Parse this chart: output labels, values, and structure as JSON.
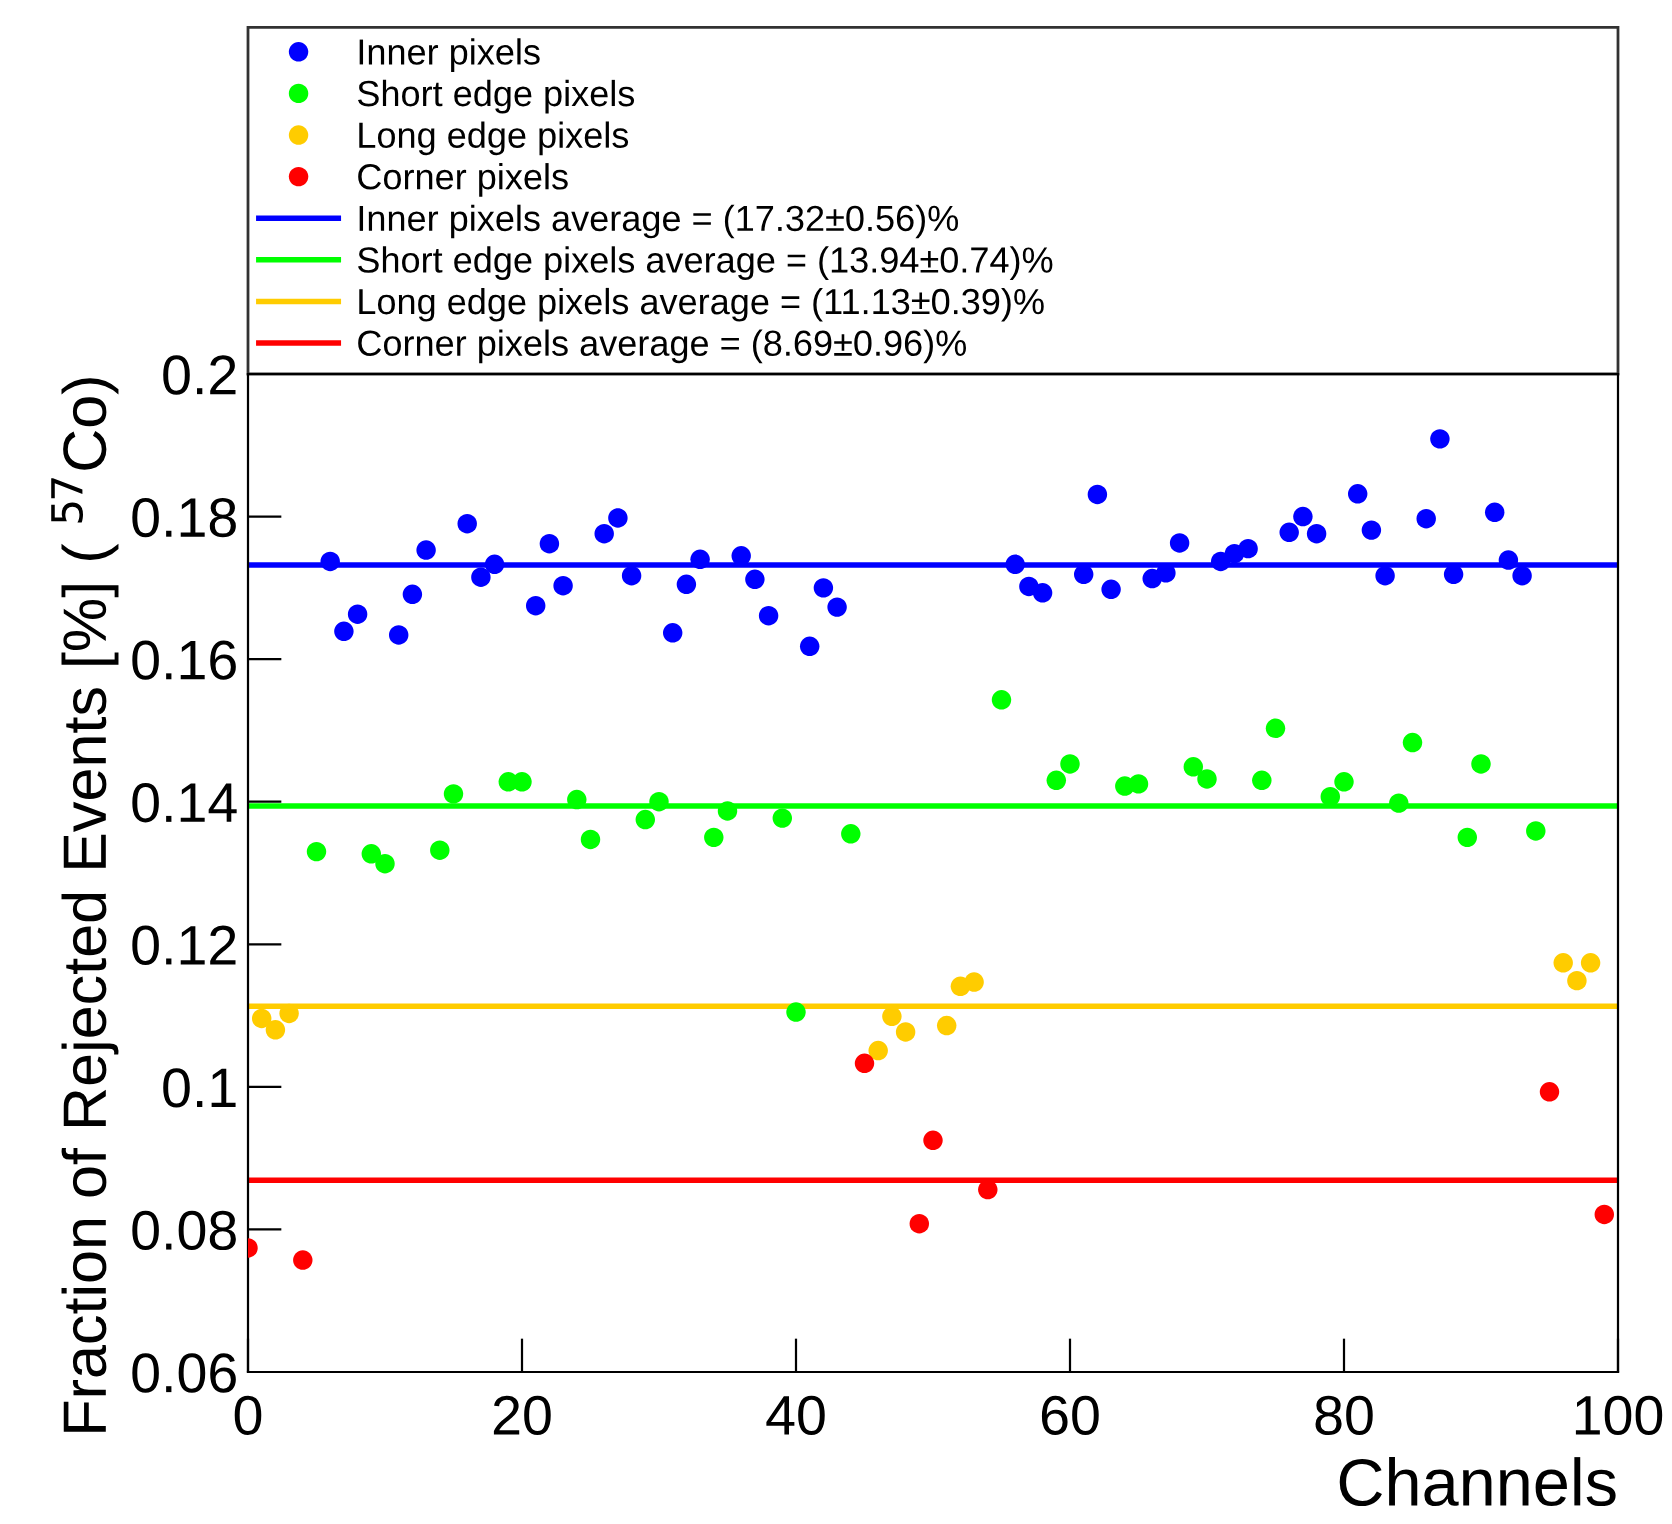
{
  "chart_data": {
    "type": "scatter",
    "xlabel": "Channels",
    "ylabel": "Fraction of Rejected Events [%] ( $^{57}$Co)",
    "xlim": [
      0,
      100
    ],
    "xticks": [
      0,
      20,
      40,
      60,
      80,
      100
    ],
    "ylim": [
      0.06,
      0.2
    ],
    "yticks": [
      0.06,
      0.08,
      0.1,
      0.12,
      0.14,
      0.16,
      0.18,
      0.2
    ],
    "grid": false,
    "legend": "top",
    "marker": "circle",
    "series": [
      {
        "name": "Inner pixels",
        "color": "#0000ff",
        "x": [
          6,
          7,
          8,
          11,
          12,
          13,
          16,
          17,
          18,
          21,
          22,
          23,
          26,
          27,
          28,
          31,
          32,
          33,
          36,
          37,
          38,
          41,
          42,
          43,
          56,
          57,
          58,
          61,
          62,
          63,
          66,
          67,
          68,
          71,
          72,
          73,
          76,
          77,
          78,
          81,
          82,
          83,
          86,
          87,
          88,
          91,
          92,
          93
        ],
        "values": [
          0.1737,
          0.1639,
          0.1663,
          0.1634,
          0.1691,
          0.1753,
          0.179,
          0.1715,
          0.1733,
          0.1675,
          0.1762,
          0.1703,
          0.1776,
          0.1798,
          0.1717,
          0.1637,
          0.1705,
          0.174,
          0.1745,
          0.1712,
          0.1661,
          0.1618,
          0.17,
          0.1673,
          0.1733,
          0.1702,
          0.1693,
          0.1719,
          0.1831,
          0.1698,
          0.1713,
          0.1721,
          0.1763,
          0.1737,
          0.1748,
          0.1755,
          0.1778,
          0.18,
          0.1776,
          0.1832,
          0.1781,
          0.1717,
          0.1797,
          0.1909,
          0.1719,
          0.1806,
          0.1739,
          0.1717
        ]
      },
      {
        "name": "Short edge pixels",
        "color": "#00ff00",
        "x": [
          5,
          9,
          10,
          14,
          15,
          19,
          20,
          24,
          25,
          29,
          30,
          34,
          35,
          39,
          40,
          44,
          55,
          59,
          60,
          64,
          65,
          69,
          70,
          74,
          75,
          79,
          80,
          84,
          85,
          89,
          90,
          94
        ],
        "values": [
          0.133,
          0.1327,
          0.1313,
          0.1332,
          0.1411,
          0.1428,
          0.1428,
          0.1403,
          0.1347,
          0.1375,
          0.14,
          0.135,
          0.1387,
          0.1377,
          0.1105,
          0.1355,
          0.1543,
          0.143,
          0.1453,
          0.1422,
          0.1425,
          0.1449,
          0.1432,
          0.143,
          0.1503,
          0.1407,
          0.1428,
          0.1398,
          0.1483,
          0.135,
          0.1453,
          0.1359
        ]
      },
      {
        "name": "Long edge pixels",
        "color": "#ffcc00",
        "x": [
          1,
          2,
          3,
          46,
          47,
          48,
          51,
          52,
          53,
          96,
          97,
          98
        ],
        "values": [
          0.1096,
          0.108,
          0.1103,
          0.1051,
          0.1099,
          0.1077,
          0.1086,
          0.1141,
          0.1147,
          0.1174,
          0.1149,
          0.1174
        ]
      },
      {
        "name": "Corner pixels",
        "color": "#ff0000",
        "x": [
          0,
          4,
          45,
          49,
          50,
          54,
          95,
          99
        ],
        "values": [
          0.0774,
          0.0757,
          0.1033,
          0.0808,
          0.0925,
          0.0856,
          0.0993,
          0.0821
        ]
      },
      {
        "name": "Inner pixels average = (17.32±0.56)%",
        "type": "line",
        "marker": "none",
        "color": "#0000ff",
        "x": [
          0,
          100
        ],
        "values": [
          0.1732,
          0.1732
        ]
      },
      {
        "name": "Short edge pixels average = (13.94±0.74)%",
        "type": "line",
        "marker": "none",
        "color": "#00ff00",
        "x": [
          0,
          100
        ],
        "values": [
          0.1394,
          0.1394
        ]
      },
      {
        "name": "Long edge pixels average = (11.13±0.39)%",
        "type": "line",
        "marker": "none",
        "color": "#ffcc00",
        "x": [
          0,
          100
        ],
        "values": [
          0.1113,
          0.1113
        ]
      },
      {
        "name": "Corner pixels average = (8.69±0.96)%",
        "type": "line",
        "marker": "none",
        "color": "#ff0000",
        "x": [
          0,
          100
        ],
        "values": [
          0.0869,
          0.0869
        ]
      }
    ]
  }
}
